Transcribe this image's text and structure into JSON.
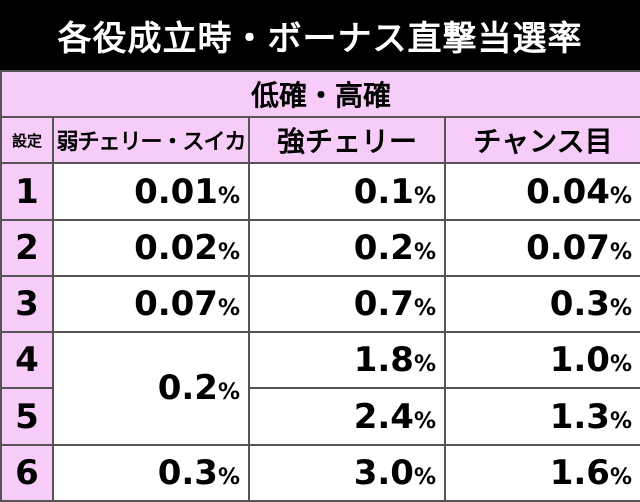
{
  "title": "各役成立時・ボーナス直撃当選率",
  "band_label": "低確・高確",
  "headers": [
    "設定",
    "弱チェリー・スイカ",
    "強チェリー",
    "チャンス目"
  ],
  "percent_sign": "%",
  "rows": [
    {
      "setting": "1",
      "weak_cherry_suika": "0.01",
      "strong_cherry": "0.1",
      "chance_me": "0.04"
    },
    {
      "setting": "2",
      "weak_cherry_suika": "0.02",
      "strong_cherry": "0.2",
      "chance_me": "0.07"
    },
    {
      "setting": "3",
      "weak_cherry_suika": "0.07",
      "strong_cherry": "0.7",
      "chance_me": "0.3"
    },
    {
      "setting": "4",
      "weak_cherry_suika": "0.2",
      "strong_cherry": "1.8",
      "chance_me": "1.0"
    },
    {
      "setting": "5",
      "weak_cherry_suika": "",
      "strong_cherry": "2.4",
      "chance_me": "1.3"
    },
    {
      "setting": "6",
      "weak_cherry_suika": "0.3",
      "strong_cherry": "3.0",
      "chance_me": "1.6"
    }
  ],
  "colors": {
    "title_bg": "#000000",
    "title_fg": "#ffffff",
    "header_bg": "#f8ccf8",
    "border": "#555555"
  }
}
